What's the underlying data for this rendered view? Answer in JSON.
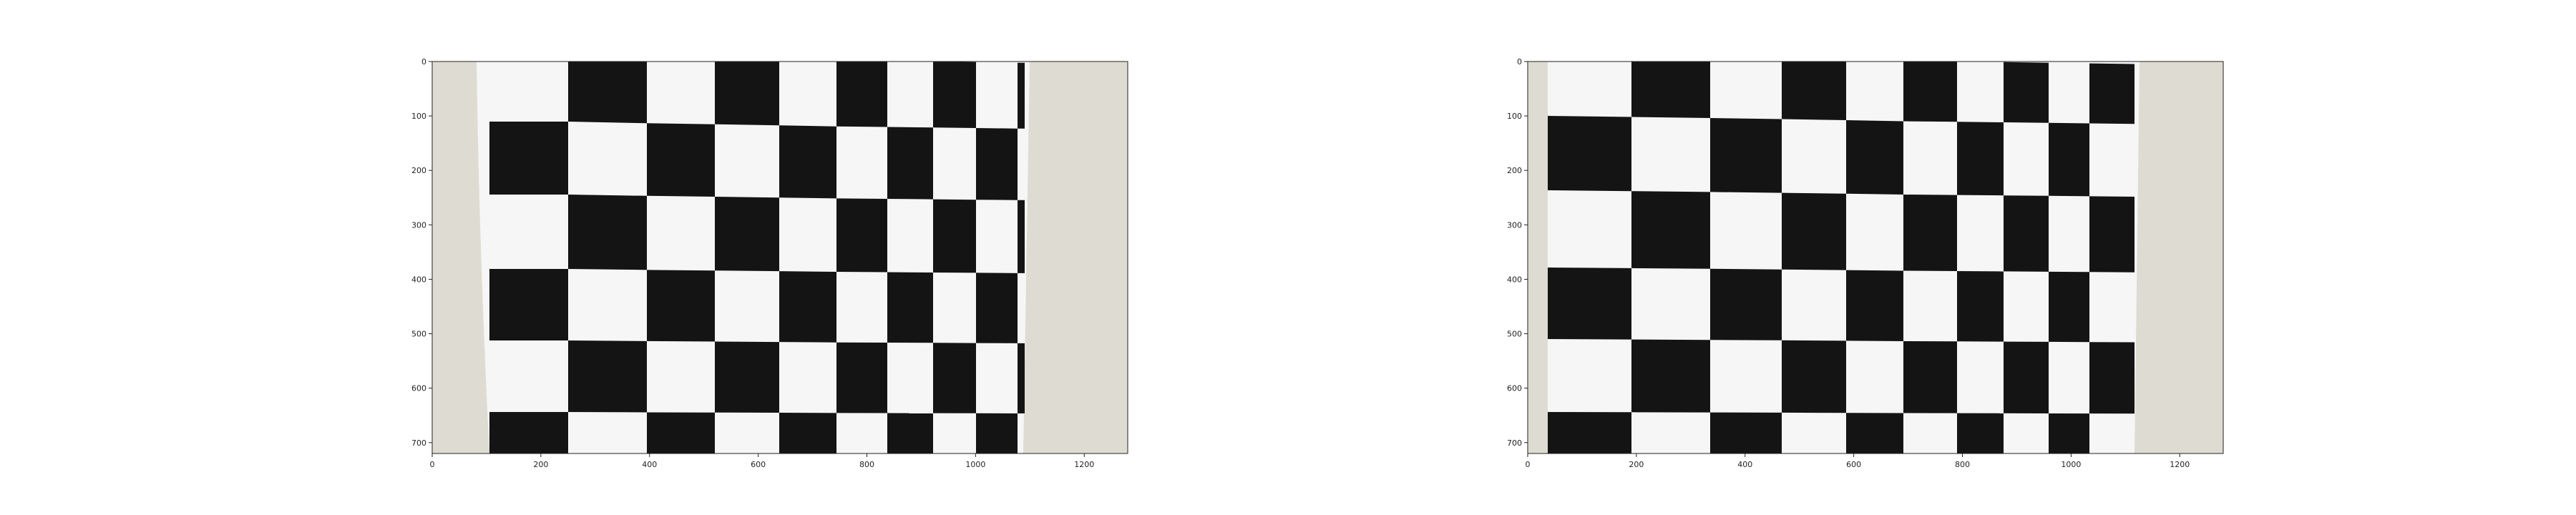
{
  "figure": {
    "panels": [
      {
        "id": "distorted",
        "xticks": [
          "0",
          "200",
          "400",
          "600",
          "800",
          "1000",
          "1200"
        ],
        "yticks": [
          "0",
          "100",
          "200",
          "300",
          "400",
          "500",
          "600",
          "700"
        ],
        "xlim": [
          0,
          1280
        ],
        "ylim": [
          720,
          0
        ]
      },
      {
        "id": "undistorted",
        "xticks": [
          "0",
          "200",
          "400",
          "600",
          "800",
          "1000",
          "1200"
        ],
        "yticks": [
          "0",
          "100",
          "200",
          "300",
          "400",
          "500",
          "600",
          "700"
        ],
        "xlim": [
          0,
          1280
        ],
        "ylim": [
          720,
          0
        ]
      }
    ]
  },
  "colors": {
    "wall": "#dedcd2",
    "paper": "#f6f6f6",
    "square": "#141414",
    "axis": "#222222"
  }
}
